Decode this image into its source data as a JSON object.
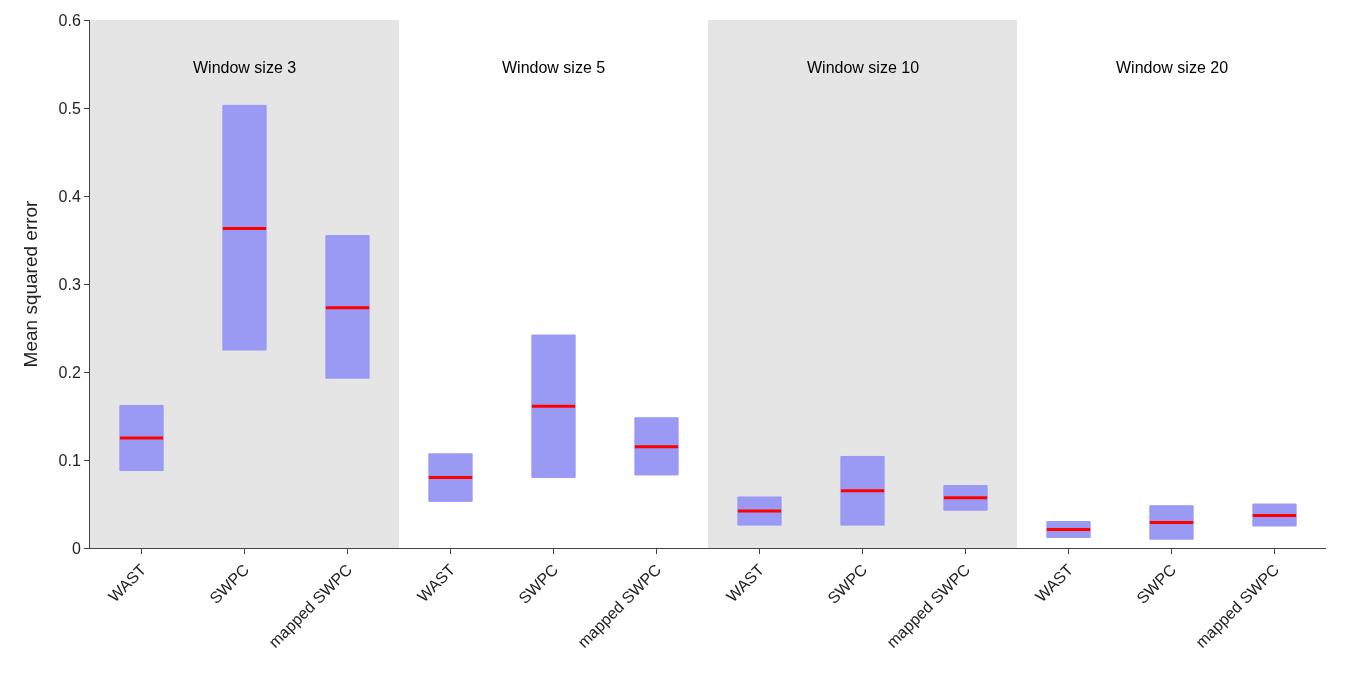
{
  "chart_data": {
    "type": "box",
    "ylabel": "Mean squared error",
    "categories": [
      "WAST",
      "SWPC",
      "mapped SWPC",
      "WAST",
      "SWPC",
      "mapped SWPC",
      "WAST",
      "SWPC",
      "mapped SWPC",
      "WAST",
      "SWPC",
      "mapped SWPC"
    ],
    "annotations": [
      "Window size 3",
      "Window size 5",
      "Window size 10",
      "Window size 20"
    ],
    "ylim": [
      0,
      0.6
    ],
    "yticks": [
      0,
      0.1,
      0.2,
      0.3,
      0.4,
      0.5,
      0.6
    ],
    "series": [
      {
        "color": "#9a9af5",
        "boxes": [
          {
            "q1": 0.088,
            "median": 0.125,
            "q3": 0.162
          },
          {
            "q1": 0.225,
            "median": 0.363,
            "q3": 0.503
          },
          {
            "q1": 0.193,
            "median": 0.273,
            "q3": 0.355
          },
          {
            "q1": 0.053,
            "median": 0.08,
            "q3": 0.107
          },
          {
            "q1": 0.08,
            "median": 0.161,
            "q3": 0.242
          },
          {
            "q1": 0.083,
            "median": 0.115,
            "q3": 0.148
          },
          {
            "q1": 0.026,
            "median": 0.042,
            "q3": 0.058
          },
          {
            "q1": 0.026,
            "median": 0.065,
            "q3": 0.104
          },
          {
            "q1": 0.043,
            "median": 0.057,
            "q3": 0.071
          },
          {
            "q1": 0.012,
            "median": 0.021,
            "q3": 0.03
          },
          {
            "q1": 0.01,
            "median": 0.029,
            "q3": 0.048
          },
          {
            "q1": 0.025,
            "median": 0.037,
            "q3": 0.05
          }
        ]
      }
    ]
  }
}
